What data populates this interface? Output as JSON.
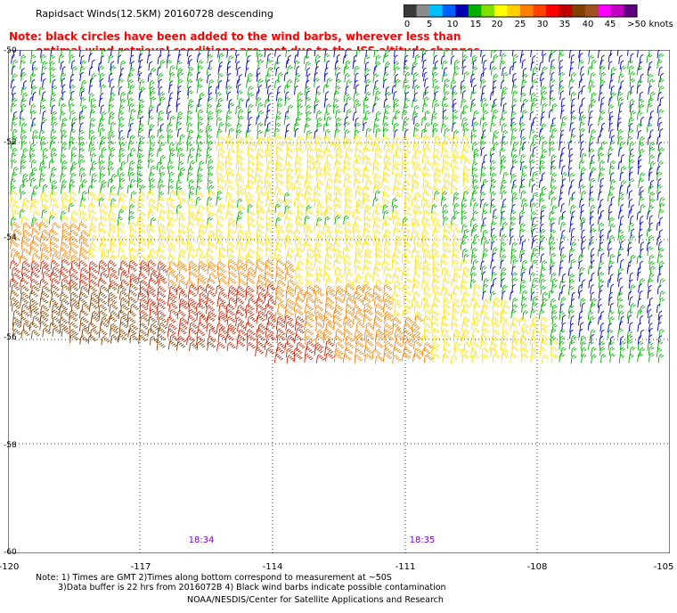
{
  "title": "Rapidsact Winds(12.5KM) 20160728 descending",
  "note": {
    "line1": "Note: black circles have been added to the wind barbs, wherever less than",
    "line2": "optimal wind retrieval conditions are met due to the ISS altitude changes."
  },
  "colorbar": {
    "labels": [
      "0",
      "5",
      "10",
      "15",
      "20",
      "25",
      "30",
      "35",
      "40",
      "45",
      ">50 knots"
    ],
    "colors": [
      "#3a3a3a",
      "#8c8c8c",
      "#00bfff",
      "#0060ff",
      "#0000b0",
      "#00b000",
      "#80e000",
      "#ffff00",
      "#ffd000",
      "#ff8000",
      "#ff4000",
      "#ff0000",
      "#c00000",
      "#804000",
      "#a05020",
      "#ff00ff",
      "#c000c0",
      "#600080"
    ]
  },
  "lat_labels": [
    "-50",
    "-52",
    "-54",
    "-56",
    "-58",
    "-60"
  ],
  "lon_labels": [
    "-120",
    "-117",
    "-114",
    "-111",
    "-108",
    "-105"
  ],
  "pass_times": [
    "18:34",
    "18:35"
  ],
  "footer": {
    "line1": "Note: 1) Times are GMT 2)Times along bottom correspond to measurement at ~50S",
    "line2": "3)Data buffer is 22 hrs from 2016072B 4) Black wind barbs indicate possible contamination",
    "line3": "NOAA/NESDIS/Center for Satellite Applications and Research"
  },
  "wind_bands": [
    {
      "speed": "15-20",
      "color": "#0000c0"
    },
    {
      "speed": "20-25",
      "color": "#00b000"
    },
    {
      "speed": "25-30",
      "color": "#ffe000"
    },
    {
      "speed": "30-35",
      "color": "#ff8000"
    },
    {
      "speed": "35-40",
      "color": "#cc2000"
    },
    {
      "speed": "40-45",
      "color": "#804000"
    }
  ]
}
